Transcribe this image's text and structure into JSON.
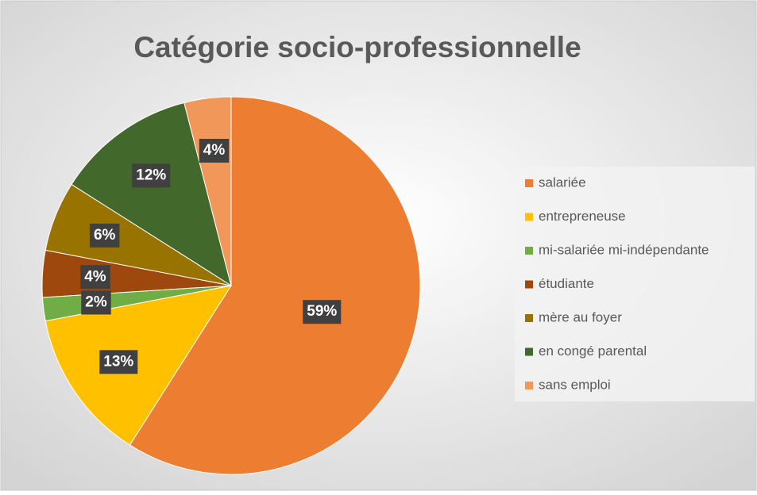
{
  "chart_data": {
    "type": "pie",
    "title": "Catégorie socio-professionnelle",
    "categories": [
      "salariée",
      "entrepreneuse",
      "mi-salariée mi-indépendante",
      "étudiante",
      "mère au foyer",
      "en congé parental",
      "sans emploi"
    ],
    "values": [
      59,
      13,
      2,
      4,
      6,
      12,
      4
    ],
    "value_labels": [
      "59%",
      "13%",
      "2%",
      "4%",
      "6%",
      "12%",
      "4%"
    ],
    "colors": [
      "#ED7D31",
      "#FFC000",
      "#70AD47",
      "#9E480E",
      "#997300",
      "#43682B",
      "#F1975A"
    ],
    "legend": "right"
  }
}
